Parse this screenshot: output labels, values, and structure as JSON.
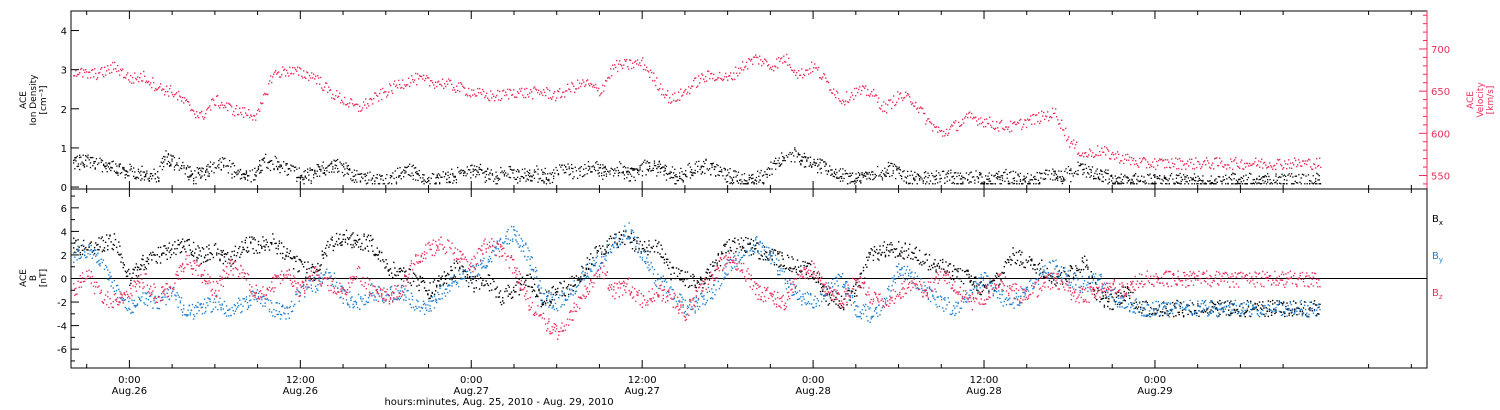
{
  "x_axis": {
    "title": "hours:minutes, Aug. 25, 2010 - Aug. 29, 2010",
    "range_hours": [
      -4.1,
      91.1
    ],
    "ticks": [
      {
        "h": 0,
        "time": "0:00",
        "date": "Aug.26"
      },
      {
        "h": 12,
        "time": "12:00",
        "date": "Aug.26"
      },
      {
        "h": 24,
        "time": "0:00",
        "date": "Aug.27"
      },
      {
        "h": 36,
        "time": "12:00",
        "date": "Aug.27"
      },
      {
        "h": 48,
        "time": "0:00",
        "date": "Aug.28"
      },
      {
        "h": 60,
        "time": "12:00",
        "date": "Aug.28"
      },
      {
        "h": 72,
        "time": "0:00",
        "date": "Aug.29"
      }
    ]
  },
  "colors": {
    "black": "#000000",
    "pink": "#e8305a",
    "blue": "#1f7fd0"
  },
  "chart_data": [
    {
      "type": "scatter",
      "panel": "top",
      "left_ylabel": [
        "ACE",
        "Ion Density",
        "[cm⁻³]"
      ],
      "right_ylabel": [
        "ACE",
        "Velocity",
        "[km/s]"
      ],
      "left_ylim": [
        -0.05,
        4.5
      ],
      "left_ticks": [
        0,
        1,
        2,
        3,
        4
      ],
      "right_ylim": [
        534,
        745
      ],
      "right_ticks": [
        550,
        600,
        650,
        700
      ],
      "series": [
        {
          "axis": "left",
          "color": "black",
          "hours": [
            -2.5,
            -1,
            0.5,
            2,
            2.5,
            3.5,
            4.5,
            5.5,
            6.5,
            7.5,
            8.5,
            9.5,
            10.5,
            11.5,
            12.5,
            13.5,
            14.5,
            15.5,
            16.5,
            17.5,
            18.5,
            19.5,
            20.5,
            21.5,
            22.5,
            23.5,
            24.5,
            25.5,
            26.5,
            27.5,
            28.5,
            29.5,
            30.5,
            31.5,
            32.5,
            33.5,
            34.5,
            35.5,
            36.5,
            37.5,
            38.5,
            39.5,
            40.5,
            41.5,
            42.5,
            43.5,
            44.5,
            45.5,
            46.5,
            47.5,
            48.5,
            49.5,
            50.5,
            51.5,
            52.5,
            53.5,
            54.5,
            55.5,
            56.5,
            57.5,
            58.5,
            59.5,
            60.5,
            61.5,
            62.5,
            63.5,
            64.5,
            65.5,
            66.5,
            67.5,
            68.5,
            69.5,
            70.5
          ],
          "values": [
            0.7,
            0.5,
            0.4,
            0.3,
            0.8,
            0.6,
            0.3,
            0.5,
            0.7,
            0.4,
            0.3,
            0.7,
            0.6,
            0.4,
            0.3,
            0.5,
            0.6,
            0.4,
            0.3,
            0.2,
            0.3,
            0.5,
            0.3,
            0.2,
            0.3,
            0.4,
            0.5,
            0.3,
            0.4,
            0.3,
            0.4,
            0.3,
            0.5,
            0.4,
            0.6,
            0.4,
            0.5,
            0.4,
            0.6,
            0.5,
            0.3,
            0.5,
            0.6,
            0.4,
            0.3,
            0.2,
            0.3,
            0.7,
            0.9,
            0.7,
            0.6,
            0.4,
            0.3,
            0.3,
            0.4,
            0.5,
            0.3,
            0.2,
            0.3,
            0.3,
            0.2,
            0.3,
            0.2,
            0.3,
            0.2,
            0.2,
            0.3,
            0.3,
            0.5,
            0.4,
            0.3,
            0.2,
            0.2
          ]
        },
        {
          "axis": "right",
          "color": "pink",
          "hours": [
            -4,
            -3,
            -2,
            -1,
            0,
            1,
            2,
            3,
            4,
            5,
            6,
            7,
            8,
            9,
            10,
            11,
            12,
            13,
            14,
            15,
            16,
            17,
            18,
            19,
            20,
            21,
            22,
            23,
            24,
            25,
            26,
            27,
            28,
            29,
            30,
            31,
            32,
            33,
            34,
            35,
            36,
            37,
            38,
            39,
            40,
            41,
            42,
            43,
            44,
            45,
            46,
            47,
            48,
            49,
            50,
            51,
            52,
            53,
            54,
            55,
            56,
            57,
            58,
            59,
            60,
            61,
            62,
            63,
            64,
            65,
            66,
            67,
            68,
            69,
            70,
            71
          ],
          "values": [
            675,
            670,
            672,
            680,
            665,
            668,
            655,
            650,
            635,
            620,
            640,
            630,
            625,
            622,
            670,
            675,
            672,
            668,
            650,
            640,
            630,
            640,
            650,
            660,
            665,
            662,
            660,
            655,
            650,
            645,
            645,
            650,
            648,
            650,
            645,
            655,
            660,
            650,
            680,
            682,
            684,
            660,
            640,
            650,
            665,
            670,
            665,
            680,
            690,
            680,
            690,
            670,
            680,
            660,
            640,
            650,
            650,
            630,
            645,
            640,
            615,
            600,
            610,
            620,
            615,
            610,
            608,
            615,
            620,
            625,
            590,
            575,
            580,
            575,
            570,
            565
          ]
        }
      ]
    },
    {
      "type": "scatter",
      "panel": "bottom",
      "left_ylabel": [
        "ACE",
        "B",
        "[nT]"
      ],
      "ylim": [
        -7.6,
        7.6
      ],
      "ticks": [
        -6,
        -4,
        -2,
        0,
        2,
        4,
        6
      ],
      "series": [
        {
          "name_main": "B",
          "name_sub": "x",
          "color": "black",
          "hours": [
            -4,
            -3,
            -2,
            -1,
            0,
            1,
            2,
            3,
            4,
            5,
            6,
            7,
            8,
            9,
            10,
            11,
            12,
            13,
            14,
            15,
            16,
            17,
            18,
            19,
            20,
            21,
            22,
            23,
            24,
            25,
            26,
            27,
            28,
            29,
            30,
            31,
            32,
            33,
            34,
            35,
            36,
            37,
            38,
            39,
            40,
            41,
            42,
            43,
            44,
            45,
            46,
            47,
            48,
            49,
            50,
            51,
            52,
            53,
            54,
            55,
            56,
            57,
            58,
            59,
            60,
            61,
            62,
            63,
            64,
            65,
            66,
            67,
            68,
            69,
            70,
            71
          ],
          "values": [
            3,
            2.5,
            3,
            3.2,
            0,
            1.5,
            2,
            2.5,
            3,
            2,
            2.5,
            1.5,
            3,
            2.8,
            3.2,
            2,
            1,
            0.5,
            3,
            3.5,
            3.2,
            3,
            1,
            0.5,
            0,
            -1,
            0,
            1,
            -0.5,
            0,
            -1.5,
            -1,
            0,
            -2,
            -1,
            -0.5,
            1,
            2.5,
            3.2,
            3.5,
            2.5,
            3,
            0.5,
            0,
            -0.5,
            1,
            2.8,
            3,
            2.5,
            2,
            1.5,
            1,
            0.5,
            -1.5,
            -2,
            -1,
            2,
            2.5,
            2.5,
            2.2,
            1.5,
            1,
            0.5,
            0,
            -1,
            0,
            2,
            1.5,
            1,
            0,
            0.5,
            1.5,
            -1.5,
            -2,
            -1,
            -2.5
          ]
        },
        {
          "name_main": "B",
          "name_sub": "y",
          "color": "blue",
          "hours": [
            -4,
            -3,
            -2,
            -1,
            0,
            1,
            2,
            3,
            4,
            5,
            6,
            7,
            8,
            9,
            10,
            11,
            12,
            13,
            14,
            15,
            16,
            17,
            18,
            19,
            20,
            21,
            22,
            23,
            24,
            25,
            26,
            27,
            28,
            29,
            30,
            31,
            32,
            33,
            34,
            35,
            36,
            37,
            38,
            39,
            40,
            41,
            42,
            43,
            44,
            45,
            46,
            47,
            48,
            49,
            50,
            51,
            52,
            53,
            54,
            55,
            56,
            57,
            58,
            59,
            60,
            61,
            62,
            63,
            64,
            65,
            66,
            67,
            68,
            69,
            70,
            71
          ],
          "values": [
            2,
            2.5,
            1.5,
            -1,
            -2.5,
            -1.5,
            -2,
            -1,
            -3,
            -2.5,
            -2,
            -2.8,
            -2,
            -1.5,
            -2.5,
            -3,
            -1,
            -0.5,
            0.5,
            -1.5,
            -2,
            -1,
            -1.5,
            -1,
            -2,
            -2.5,
            -1,
            0,
            0.5,
            1.5,
            3,
            4,
            2,
            -1.5,
            -2,
            -1,
            0.5,
            1.5,
            3,
            4.2,
            2,
            0,
            -1,
            -2.5,
            -2,
            -1,
            1,
            2,
            3,
            2,
            0,
            -1.5,
            -2,
            -1,
            0,
            -2.5,
            -3,
            -2,
            1,
            0,
            -1,
            -2,
            -2.5,
            -1,
            0,
            -1.5,
            -2,
            -1,
            0.5,
            1,
            0,
            -0.5,
            0,
            -1.5,
            -2,
            -2.5
          ]
        },
        {
          "name_main": "B",
          "name_sub": "z",
          "color": "pink",
          "hours": [
            -4,
            -3,
            -2,
            -1,
            0,
            1,
            2,
            3,
            4,
            5,
            6,
            7,
            8,
            9,
            10,
            11,
            12,
            13,
            14,
            15,
            16,
            17,
            18,
            19,
            20,
            21,
            22,
            23,
            24,
            25,
            26,
            27,
            28,
            29,
            30,
            31,
            32,
            33,
            34,
            35,
            36,
            37,
            38,
            39,
            40,
            41,
            42,
            43,
            44,
            45,
            46,
            47,
            48,
            49,
            50,
            51,
            52,
            53,
            54,
            55,
            56,
            57,
            58,
            59,
            60,
            61,
            62,
            63,
            64,
            65,
            66,
            67,
            68,
            69,
            70,
            71
          ],
          "values": [
            -1,
            0.5,
            -1.5,
            -2,
            -1,
            0,
            -1.5,
            -0.5,
            1.5,
            0.5,
            -1,
            1,
            0.5,
            -1.5,
            -0.5,
            0.5,
            -1,
            0.5,
            -0.5,
            -1,
            0.5,
            -1,
            -1.5,
            -1,
            1.5,
            2.5,
            3,
            2,
            1,
            3,
            2.5,
            1,
            -2,
            -3.5,
            -4.5,
            -3,
            -1,
            1,
            -1,
            -0.5,
            -2,
            -1,
            -1.5,
            -3,
            -1,
            0.5,
            2,
            1,
            -1,
            -1.5,
            -2,
            0.5,
            1,
            -1,
            -2,
            0,
            -1.5,
            -2,
            -1,
            -0.5,
            -1,
            0.5,
            -1,
            -2,
            -1.5,
            0,
            -1,
            -1.5,
            -0.5,
            0,
            -1,
            -1.5,
            -1,
            -0.5,
            -1,
            0
          ]
        }
      ]
    }
  ]
}
